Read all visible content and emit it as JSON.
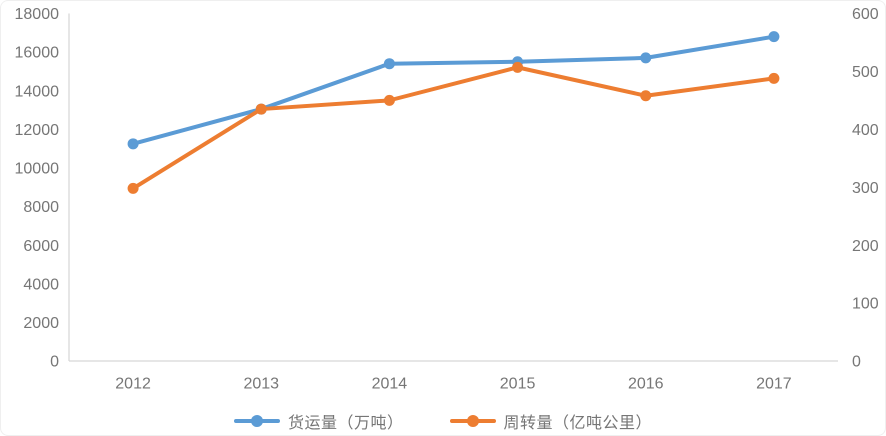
{
  "chart_data": {
    "type": "line",
    "title": "",
    "categories": [
      "2012",
      "2013",
      "2014",
      "2015",
      "2016",
      "2017"
    ],
    "series": [
      {
        "name": "货运量（万吨）",
        "axis": "left",
        "color": "#5B9BD5",
        "values": [
          11250,
          13050,
          15400,
          15500,
          15700,
          16800
        ]
      },
      {
        "name": "周转量（亿吨公里）",
        "axis": "right",
        "color": "#ED7D31",
        "values": [
          298,
          435,
          450,
          507,
          458,
          488
        ]
      }
    ],
    "left_axis": {
      "min": 0,
      "max": 18000,
      "step": 2000,
      "ticks": [
        0,
        2000,
        4000,
        6000,
        8000,
        10000,
        12000,
        14000,
        16000,
        18000
      ]
    },
    "right_axis": {
      "min": 0,
      "max": 600,
      "step": 100,
      "ticks": [
        0,
        100,
        200,
        300,
        400,
        500,
        600
      ]
    },
    "grid": false,
    "legend_position": "bottom",
    "style": {
      "axis_line_color": "#D8D8D8",
      "tick_label_color": "#767676",
      "line_width": 4,
      "marker_radius": 5.5
    }
  }
}
